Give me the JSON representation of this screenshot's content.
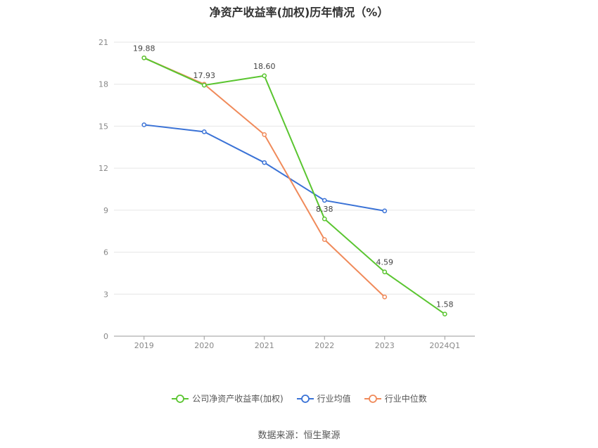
{
  "chart_data": {
    "type": "line",
    "title": "净资产收益率(加权)历年情况（%）",
    "categories": [
      "2019",
      "2020",
      "2021",
      "2022",
      "2023",
      "2024Q1"
    ],
    "y_ticks": [
      "0",
      "3",
      "6",
      "9",
      "12",
      "15",
      "18",
      "21"
    ],
    "ylim": [
      0,
      21
    ],
    "grid": true,
    "legend_position": "bottom",
    "series": [
      {
        "name": "公司净资产收益率(加权)",
        "color": "#5ac530",
        "values": [
          19.88,
          17.93,
          18.6,
          8.38,
          4.59,
          1.58
        ],
        "labels": [
          "19.88",
          "17.93",
          "18.60",
          "8.38",
          "4.59",
          "1.58"
        ]
      },
      {
        "name": "行业均值",
        "color": "#3a72d6",
        "values": [
          15.1,
          14.6,
          12.4,
          9.7,
          8.95,
          null
        ]
      },
      {
        "name": "行业中位数",
        "color": "#f08a5a",
        "values": [
          19.88,
          18.0,
          14.4,
          6.9,
          2.8,
          null
        ]
      }
    ]
  },
  "source": "数据来源：恒生聚源"
}
